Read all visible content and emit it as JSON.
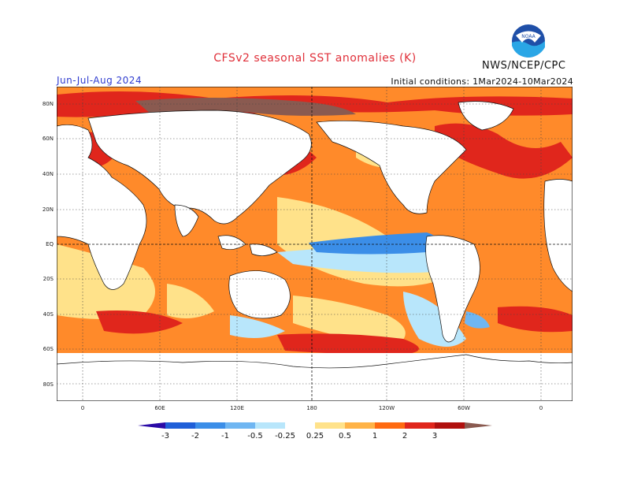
{
  "title": "CFSv2 seasonal SST anomalies (K)",
  "agency": "NWS/NCEP/CPC",
  "logo_text": "NOAA",
  "season": "Jun-Jul-Aug 2024",
  "initial_conditions": "Initial conditions: 1Mar2024-10Mar2024",
  "lat_labels": [
    "80N",
    "60N",
    "40N",
    "20N",
    "EQ",
    "20S",
    "40S",
    "60S",
    "80S"
  ],
  "lon_labels": [
    "0",
    "60E",
    "120E",
    "180",
    "120W",
    "60W",
    "0"
  ],
  "colorbar": {
    "labels": [
      "-3",
      "-2",
      "-1",
      "-0.5",
      "-0.25",
      "0.25",
      "0.5",
      "1",
      "2",
      "3"
    ],
    "colors": [
      "#2a0aa6",
      "#1f5fd8",
      "#3b8ee8",
      "#6fb6f2",
      "#b8e6fb",
      "#ffffff",
      "#ffe28a",
      "#ffb347",
      "#ff6a10",
      "#e0261c",
      "#b0100e",
      "#8a5a50"
    ]
  },
  "colors": {
    "ocean_neutral": "#ffffff",
    "warm_light": "#ffe28a",
    "warm_mid": "#ffb347",
    "warm": "#ff6a10",
    "hot": "#e0261c",
    "very_hot": "#b0100e",
    "extreme": "#8a5a50",
    "cool_light": "#b8e6fb",
    "cool": "#6fb6f2",
    "cool_mid": "#3b8ee8"
  }
}
